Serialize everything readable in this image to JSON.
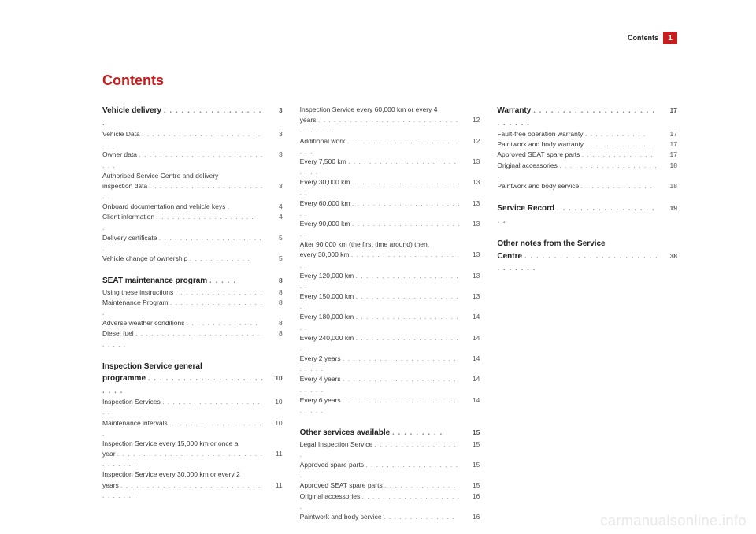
{
  "colors": {
    "accent": "#c41e1e",
    "text": "#3a3a3a",
    "watermark": "#e8e8e8",
    "background": "#ffffff"
  },
  "header": {
    "label": "Contents",
    "page_tab": "1"
  },
  "title": "Contents",
  "watermark": "carmanualsonline.info",
  "col1": {
    "s1": {
      "title": "Vehicle delivery",
      "page": "3"
    },
    "e1": {
      "label": "Vehicle Data",
      "page": "3"
    },
    "e2": {
      "label": "Owner data",
      "page": "3"
    },
    "e3a": "Authorised Service Centre and delivery",
    "e3b": {
      "label": "inspection data",
      "page": "3"
    },
    "e4": {
      "label": "Onboard documentation and vehicle keys",
      "page": "4"
    },
    "e5": {
      "label": "Client information",
      "page": "4"
    },
    "e6": {
      "label": "Delivery certificate",
      "page": "5"
    },
    "e7": {
      "label": "Vehicle change of ownership",
      "page": "5"
    },
    "s2": {
      "title": "SEAT maintenance program",
      "page": "8"
    },
    "e8": {
      "label": "Using these instructions",
      "page": "8"
    },
    "e9": {
      "label": "Maintenance Program",
      "page": "8"
    },
    "e10": {
      "label": "Adverse weather conditions",
      "page": "8"
    },
    "e11": {
      "label": "Diesel fuel",
      "page": "8"
    },
    "s3a": "Inspection Service general",
    "s3b": {
      "title": "programme",
      "page": "10"
    },
    "e12": {
      "label": "Inspection Services",
      "page": "10"
    },
    "e13": {
      "label": "Maintenance intervals",
      "page": "10"
    },
    "e14a": "Inspection Service every 15,000 km or once a",
    "e14b": {
      "label": "year",
      "page": "11"
    },
    "e15a": "Inspection Service every 30,000 km or every 2",
    "e15b": {
      "label": "years",
      "page": "11"
    }
  },
  "col2": {
    "e1a": "Inspection Service every 60,000 km or every 4",
    "e1b": {
      "label": "years",
      "page": "12"
    },
    "e2": {
      "label": "Additional work",
      "page": "12"
    },
    "e3": {
      "label": "Every 7,500 km",
      "page": "13"
    },
    "e4": {
      "label": "Every 30,000 km",
      "page": "13"
    },
    "e5": {
      "label": "Every 60,000 km",
      "page": "13"
    },
    "e6": {
      "label": "Every 90,000 km",
      "page": "13"
    },
    "e7a": "After 90,000 km (the first time around) then,",
    "e7b": {
      "label": "every 30,000 km",
      "page": "13"
    },
    "e8": {
      "label": "Every 120,000 km",
      "page": "13"
    },
    "e9": {
      "label": "Every 150,000 km",
      "page": "13"
    },
    "e10": {
      "label": "Every 180,000 km",
      "page": "14"
    },
    "e11": {
      "label": "Every 240,000 km",
      "page": "14"
    },
    "e12": {
      "label": "Every 2 years",
      "page": "14"
    },
    "e13": {
      "label": "Every 4 years",
      "page": "14"
    },
    "e14": {
      "label": "Every 6 years",
      "page": "14"
    },
    "s1": {
      "title": "Other services available",
      "page": "15"
    },
    "e15": {
      "label": "Legal Inspection Service",
      "page": "15"
    },
    "e16": {
      "label": "Approved spare parts",
      "page": "15"
    },
    "e17": {
      "label": "Approved SEAT spare parts",
      "page": "15"
    },
    "e18": {
      "label": "Original accessories",
      "page": "16"
    },
    "e19": {
      "label": "Paintwork and body service",
      "page": "16"
    }
  },
  "col3": {
    "s1": {
      "title": "Warranty",
      "page": "17"
    },
    "e1": {
      "label": "Fault-free operation warranty",
      "page": "17"
    },
    "e2": {
      "label": "Paintwork and body warranty",
      "page": "17"
    },
    "e3": {
      "label": "Approved SEAT spare parts",
      "page": "17"
    },
    "e4": {
      "label": "Original accessories",
      "page": "18"
    },
    "e5": {
      "label": "Paintwork and body service",
      "page": "18"
    },
    "s2": {
      "title": "Service Record",
      "page": "19"
    },
    "s3a": "Other notes from the Service",
    "s3b": {
      "title": "Centre",
      "page": "38"
    }
  }
}
